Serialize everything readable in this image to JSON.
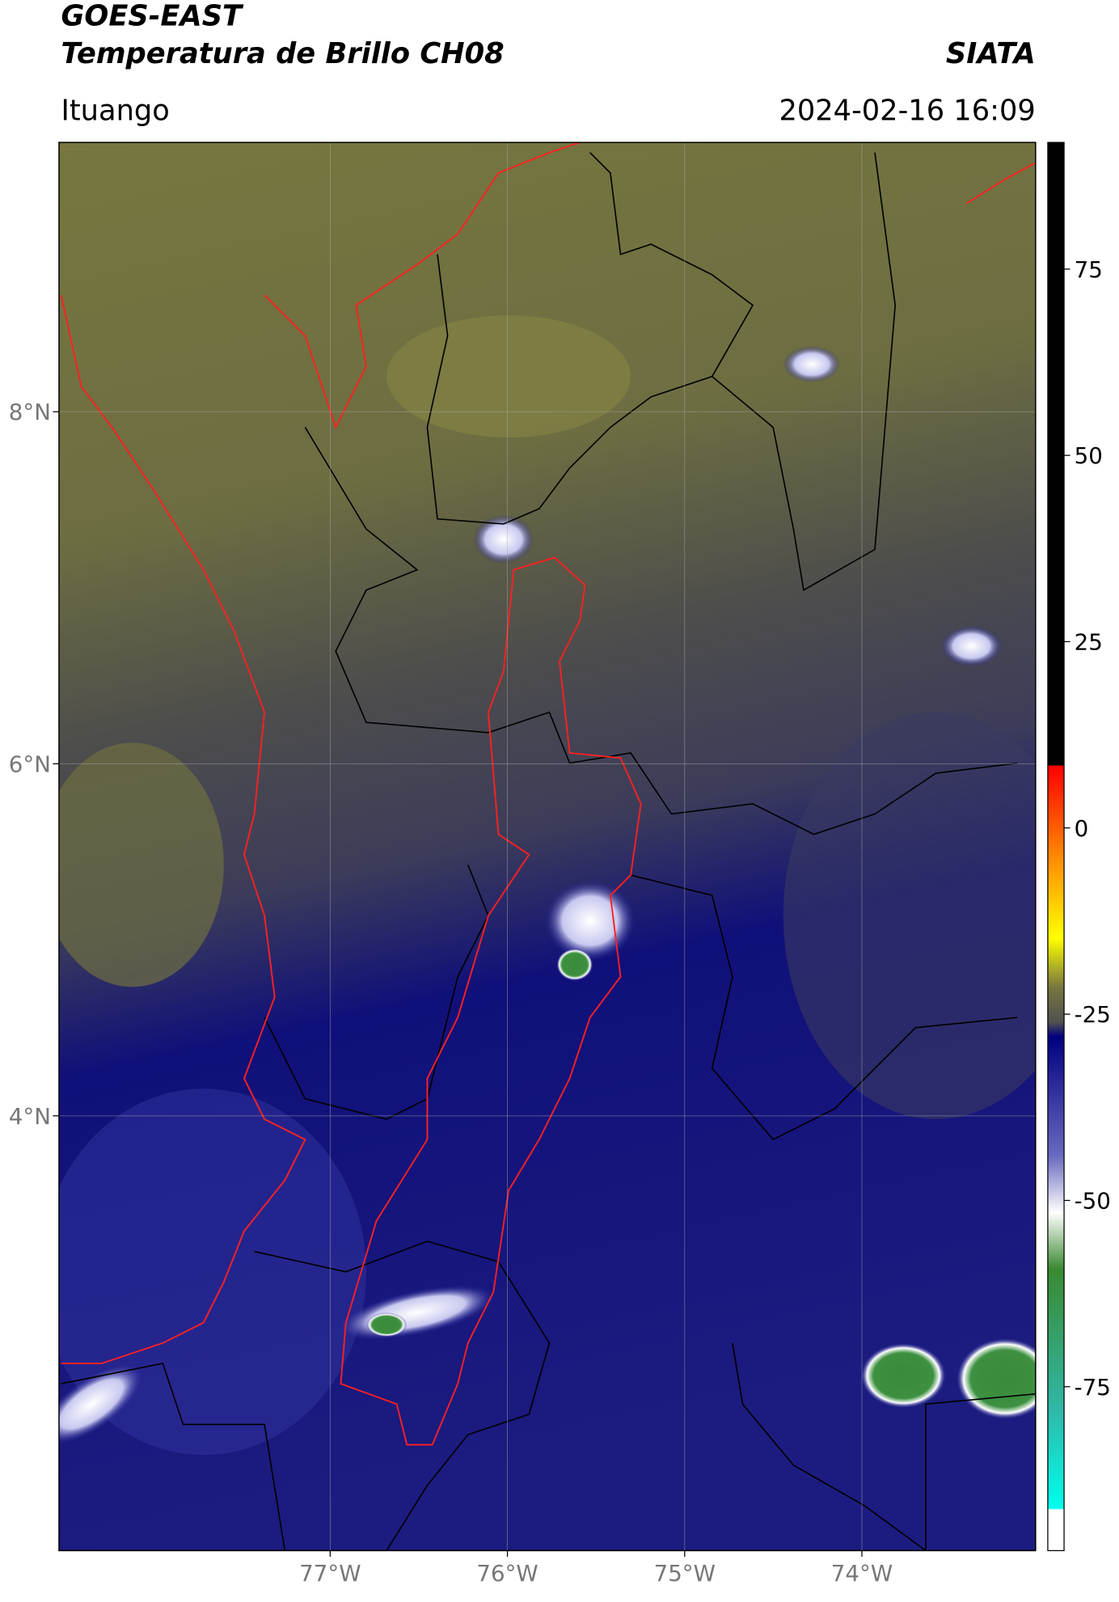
{
  "header": {
    "title": "GOES-EAST",
    "subtitle": "Temperatura de Brillo CH08",
    "agency": "SIATA",
    "location": "Ituango",
    "datetime": "2024-02-16 16:09"
  },
  "map": {
    "xlim": [
      -78.53,
      -73.02
    ],
    "ylim": [
      1.53,
      9.53
    ],
    "xticks": [
      {
        "value": -77,
        "label": "77°W"
      },
      {
        "value": -76,
        "label": "76°W"
      },
      {
        "value": -75,
        "label": "75°W"
      },
      {
        "value": -74,
        "label": "74°W"
      }
    ],
    "yticks": [
      {
        "value": 8,
        "label": "8°N"
      },
      {
        "value": 6,
        "label": "6°N"
      },
      {
        "value": 4,
        "label": "4°N"
      }
    ]
  },
  "colorbar": {
    "lim": [
      -97,
      92
    ],
    "ticks": [
      75,
      50,
      25,
      0,
      -25,
      -50,
      -75
    ]
  }
}
